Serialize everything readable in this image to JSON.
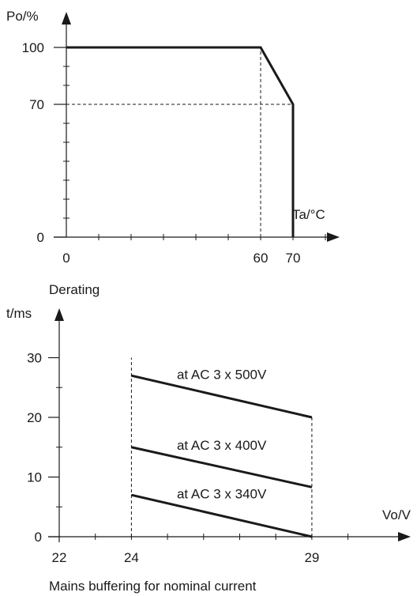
{
  "chart_data": [
    {
      "type": "line",
      "title": "Derating",
      "xlabel": "Ta/°C",
      "ylabel": "Po/%",
      "xlim": [
        0,
        85
      ],
      "ylim": [
        0,
        100
      ],
      "x_ticks": [
        0,
        60,
        70
      ],
      "y_ticks": [
        0,
        70,
        100
      ],
      "grid": false,
      "series": [
        {
          "x": [
            0,
            60,
            70,
            70
          ],
          "y": [
            100,
            100,
            70,
            0
          ]
        }
      ],
      "reference_lines": [
        {
          "from": [
            60,
            0
          ],
          "to": [
            60,
            100
          ]
        },
        {
          "from": [
            0,
            70
          ],
          "to": [
            70,
            70
          ]
        }
      ]
    },
    {
      "type": "line",
      "title": "Mains buffering for nominal current",
      "xlabel": "Vo/V",
      "ylabel": "t/ms",
      "xlim": [
        22,
        30
      ],
      "ylim": [
        0,
        35
      ],
      "x_ticks": [
        22,
        24,
        29
      ],
      "y_ticks": [
        0,
        10,
        20,
        30
      ],
      "grid": false,
      "series": [
        {
          "name": "at AC 3 x 500V",
          "x": [
            24,
            29
          ],
          "y": [
            27,
            20
          ]
        },
        {
          "name": "at AC 3 x 400V",
          "x": [
            24,
            29
          ],
          "y": [
            15,
            8.3
          ]
        },
        {
          "name": "at AC 3 x 340V",
          "x": [
            24,
            29
          ],
          "y": [
            7,
            0
          ]
        }
      ],
      "reference_lines": [
        {
          "from": [
            24,
            0
          ],
          "to": [
            24,
            30
          ]
        },
        {
          "from": [
            29,
            0
          ],
          "to": [
            29,
            20
          ]
        }
      ]
    }
  ]
}
